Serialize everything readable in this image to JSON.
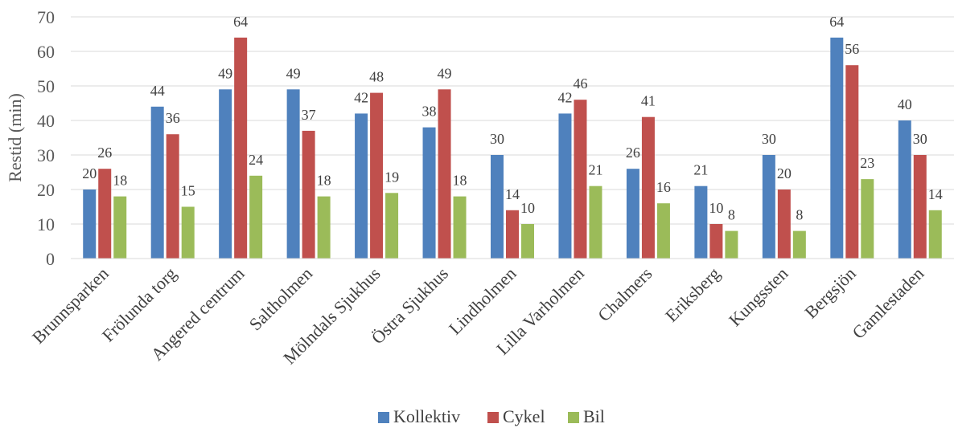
{
  "chart_data": {
    "type": "bar",
    "ylabel": "Restid (min)",
    "xlabel": "",
    "ylim": [
      0,
      70
    ],
    "yticks": [
      0,
      10,
      20,
      30,
      40,
      50,
      60,
      70
    ],
    "grid": true,
    "legend_position": "bottom",
    "categories": [
      "Brunnsparken",
      "Frölunda torg",
      "Angered centrum",
      "Saltholmen",
      "Mölndals Sjukhus",
      "Östra Sjukhus",
      "Lindholmen",
      "Lilla Varholmen",
      "Chalmers",
      "Eriksberg",
      "Kungssten",
      "Bergsjön",
      "Gamlestaden"
    ],
    "series": [
      {
        "name": "Kollektiv",
        "color": "#4F81BD",
        "values": [
          20,
          44,
          49,
          49,
          42,
          38,
          30,
          42,
          26,
          21,
          30,
          64,
          40
        ]
      },
      {
        "name": "Cykel",
        "color": "#C0504D",
        "values": [
          26,
          36,
          64,
          37,
          48,
          49,
          14,
          46,
          41,
          10,
          20,
          56,
          30
        ]
      },
      {
        "name": "Bil",
        "color": "#9BBB59",
        "values": [
          18,
          15,
          24,
          18,
          19,
          18,
          10,
          21,
          16,
          8,
          8,
          23,
          14
        ]
      }
    ]
  }
}
